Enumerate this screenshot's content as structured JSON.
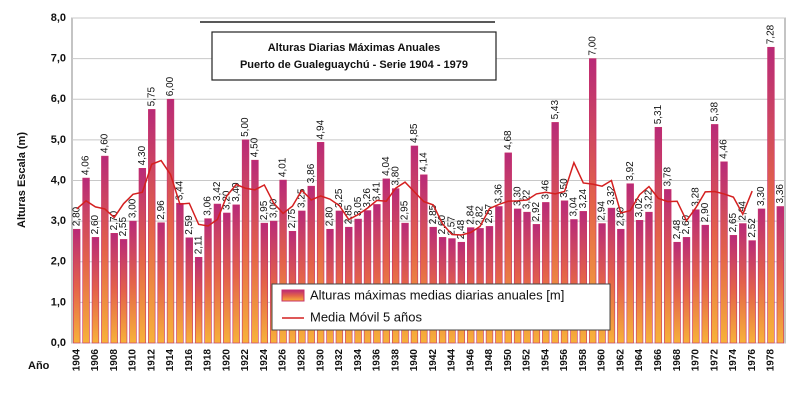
{
  "chart_data": {
    "type": "bar",
    "title": "Alturas Diarias Máximas Anuales",
    "subtitle": "Puerto de Gualeguaychú - Serie 1904 - 1979",
    "y_label": "Alturas Escala (m)",
    "x_label": "Año",
    "categories": [
      "1904",
      null,
      "1906",
      null,
      "1908",
      null,
      "1910",
      null,
      "1912",
      null,
      "1914",
      null,
      "1916",
      null,
      "1918",
      null,
      "1920",
      null,
      "1922",
      null,
      "1924",
      null,
      "1926",
      null,
      "1928",
      null,
      "1930",
      null,
      "1932",
      null,
      "1934",
      null,
      "1936",
      null,
      "1938",
      null,
      "1940",
      null,
      "1942",
      null,
      "1944",
      null,
      "1946",
      null,
      "1948",
      null,
      "1950",
      null,
      "1952",
      null,
      "1954",
      null,
      "1956",
      null,
      "1958",
      null,
      "1960",
      null,
      "1962",
      null,
      "1964",
      null,
      "1966",
      null,
      "1968",
      null,
      "1970",
      null,
      "1972",
      null,
      "1974",
      null,
      "1976",
      null,
      "1978",
      null
    ],
    "series": [
      {
        "name": "Alturas máximas medias diarias anuales [m]",
        "color": "#c8306a",
        "values": [
          2.8,
          4.06,
          2.6,
          4.6,
          2.7,
          2.55,
          3.0,
          4.3,
          5.75,
          2.96,
          6.0,
          3.44,
          2.59,
          2.11,
          3.06,
          3.42,
          3.2,
          3.4,
          5.0,
          4.5,
          2.95,
          3.0,
          4.01,
          2.75,
          3.25,
          3.86,
          4.94,
          2.8,
          3.25,
          2.85,
          3.05,
          3.26,
          3.41,
          4.04,
          3.8,
          2.95,
          4.85,
          4.14,
          2.85,
          2.6,
          2.57,
          2.48,
          2.84,
          2.82,
          2.87,
          3.36,
          4.68,
          3.3,
          3.22,
          2.92,
          3.46,
          5.43,
          3.5,
          3.04,
          3.24,
          7.0,
          2.94,
          3.32,
          2.8,
          3.92,
          3.02,
          3.22,
          5.31,
          3.78,
          2.48,
          2.6,
          3.28,
          2.9,
          5.38,
          4.46,
          2.65,
          2.94,
          2.52,
          3.3,
          7.28,
          3.36
        ],
        "value_labels": [
          "2,80",
          "4,06",
          "2,60",
          "4,60",
          "2,70",
          "2,55",
          "3,00",
          "4,30",
          "5,75",
          "2,96",
          "6,00",
          "3,44",
          "2,59",
          "2,11",
          "3,06",
          "3,42",
          "3,20",
          "3,40",
          "5,00",
          "4,50",
          "2,95",
          "3,00",
          "4,01",
          "2,75",
          "3,25",
          "3,86",
          "4,94",
          "2,80",
          "3,25",
          "2,85",
          "3,05",
          "3,26",
          "3,41",
          "4,04",
          "3,80",
          "2,95",
          "4,85",
          "4,14",
          "2,85",
          "2,60",
          "2,57",
          "2,48",
          "2,84",
          "2,82",
          "2,87",
          "3,36",
          "4,68",
          "3,30",
          "3,22",
          "2,92",
          "3,46",
          "5,43",
          "3,50",
          "3,04",
          "3,24",
          "7,00",
          "2,94",
          "3,32",
          "2,80",
          "3,92",
          "3,02",
          "3,22",
          "5,31",
          "3,78",
          "2,48",
          "2,60",
          "3,28",
          "2,90",
          "5,38",
          "4,46",
          "2,65",
          "2,94",
          "2,52",
          "3,30",
          "7,28",
          "3,36"
        ]
      },
      {
        "name": "Media Móvil 5 años",
        "color": "#d42020",
        "type": "line",
        "values": [
          3.3,
          3.5,
          3.35,
          3.3,
          3.09,
          3.43,
          3.66,
          3.71,
          4.4,
          4.49,
          4.15,
          3.42,
          3.44,
          2.92,
          2.88,
          3.04,
          3.62,
          3.9,
          3.81,
          3.77,
          3.89,
          3.44,
          3.19,
          3.37,
          3.76,
          3.52,
          3.62,
          3.54,
          3.38,
          3.04,
          3.16,
          3.32,
          3.51,
          3.49,
          3.81,
          3.96,
          3.72,
          3.48,
          3.4,
          2.93,
          2.67,
          2.66,
          2.72,
          2.87,
          3.31,
          3.41,
          3.49,
          3.5,
          3.52,
          3.67,
          3.71,
          3.67,
          3.73,
          4.44,
          3.94,
          3.91,
          3.86,
          4.0,
          3.2,
          3.26,
          3.65,
          3.85,
          3.56,
          3.48,
          3.49,
          3.01,
          3.33,
          3.72,
          3.73,
          3.67,
          3.59,
          3.17,
          3.74,
          null,
          null,
          null
        ]
      }
    ],
    "ylim": [
      0,
      8
    ],
    "yticks": [
      {
        "value": 0,
        "label": "0,0"
      },
      {
        "value": 1,
        "label": "1,0"
      },
      {
        "value": 2,
        "label": "2,0"
      },
      {
        "value": 3,
        "label": "3,0"
      },
      {
        "value": 4,
        "label": "4,0"
      },
      {
        "value": 5,
        "label": "5,0"
      },
      {
        "value": 6,
        "label": "6,0"
      },
      {
        "value": 7,
        "label": "7,0"
      },
      {
        "value": 8,
        "label": "8,0"
      }
    ],
    "grid": true
  }
}
